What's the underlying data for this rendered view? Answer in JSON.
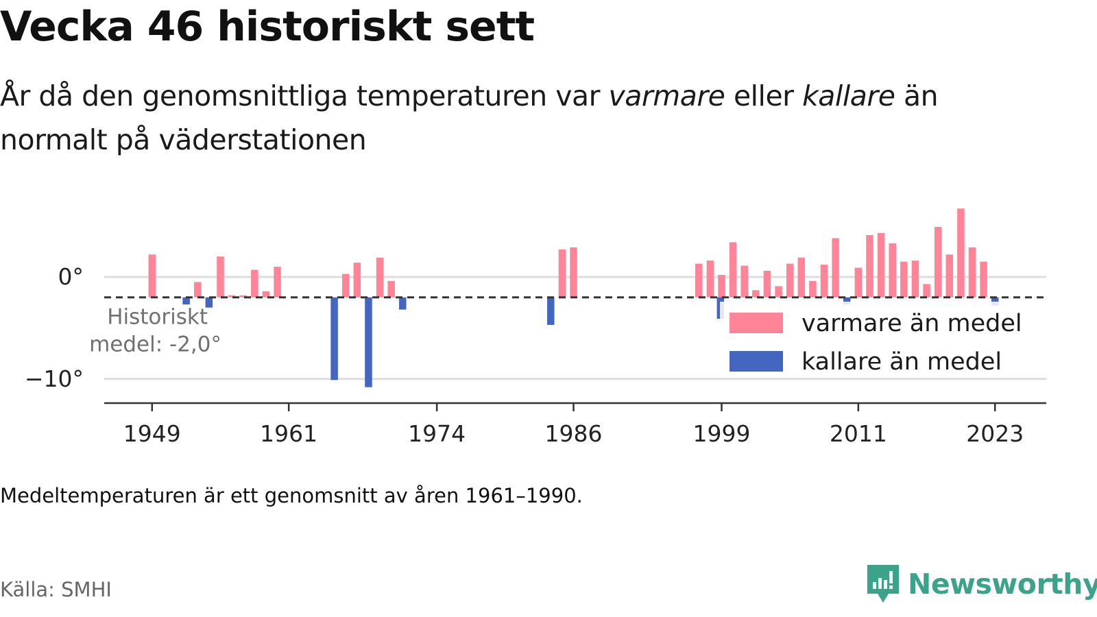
{
  "header": {
    "title": "Vecka 46 historiskt sett",
    "subtitle_pre": "År då den genomsnittliga temperaturen var ",
    "subtitle_warm": "varmare",
    "subtitle_mid": " eller ",
    "subtitle_cold": "kallare",
    "subtitle_post": " än normalt på väderstationen"
  },
  "footer": {
    "note": "Medeltemperaturen är ett genomsnitt av åren 1961–1990.",
    "source": "Källa: SMHI",
    "brand": "Newsworthy"
  },
  "colors": {
    "warm": "#ff8497",
    "cold": "#4466c1",
    "grid": "#dddddd",
    "axis": "#333333",
    "brand": "#3aa38a"
  },
  "chart_data": {
    "type": "bar",
    "baseline": -2.0,
    "baseline_label_line1": "Historiskt",
    "baseline_label_line2": "medel: -2,0°",
    "ylim": [
      -12.5,
      9
    ],
    "yticks": [
      0,
      -10
    ],
    "ytick_labels": [
      "0°",
      "−10°"
    ],
    "xlim": [
      1944.8,
      2027.5
    ],
    "xticks": [
      1949,
      1961,
      1974,
      1986,
      1999,
      2011,
      2023
    ],
    "legend": {
      "position": "right",
      "warm_label": "varmare än medel",
      "cold_label": "kallare än medel"
    },
    "series": [
      {
        "name": "varmare än medel",
        "color": "#ff8497",
        "points": [
          {
            "x": 1949,
            "y": 2.2
          },
          {
            "x": 1953,
            "y": -0.5
          },
          {
            "x": 1955,
            "y": 2.0
          },
          {
            "x": 1956,
            "y": -1.8
          },
          {
            "x": 1957,
            "y": -1.8
          },
          {
            "x": 1958,
            "y": 0.7
          },
          {
            "x": 1959,
            "y": -1.4
          },
          {
            "x": 1960,
            "y": 1.0
          },
          {
            "x": 1966,
            "y": 0.3
          },
          {
            "x": 1967,
            "y": 1.4
          },
          {
            "x": 1969,
            "y": 1.9
          },
          {
            "x": 1970,
            "y": -0.4
          },
          {
            "x": 1985,
            "y": 2.7
          },
          {
            "x": 1986,
            "y": 2.9
          },
          {
            "x": 1997,
            "y": 1.3
          },
          {
            "x": 1998,
            "y": 1.6
          },
          {
            "x": 1999,
            "y": 0.2
          },
          {
            "x": 2000,
            "y": 3.4
          },
          {
            "x": 2001,
            "y": 1.1
          },
          {
            "x": 2002,
            "y": -1.3
          },
          {
            "x": 2003,
            "y": 0.6
          },
          {
            "x": 2004,
            "y": -0.9
          },
          {
            "x": 2005,
            "y": 1.3
          },
          {
            "x": 2006,
            "y": 1.9
          },
          {
            "x": 2007,
            "y": -0.4
          },
          {
            "x": 2008,
            "y": 1.2
          },
          {
            "x": 2009,
            "y": 3.8
          },
          {
            "x": 2011,
            "y": 0.9
          },
          {
            "x": 2012,
            "y": 4.1
          },
          {
            "x": 2013,
            "y": 4.3
          },
          {
            "x": 2014,
            "y": 3.3
          },
          {
            "x": 2015,
            "y": 1.5
          },
          {
            "x": 2016,
            "y": 1.6
          },
          {
            "x": 2017,
            "y": -0.7
          },
          {
            "x": 2018,
            "y": 4.9
          },
          {
            "x": 2019,
            "y": 2.2
          },
          {
            "x": 2020,
            "y": 6.7
          },
          {
            "x": 2021,
            "y": 2.9
          },
          {
            "x": 2022,
            "y": 1.5
          }
        ]
      },
      {
        "name": "kallare än medel",
        "color": "#4466c1",
        "points": [
          {
            "x": 1952,
            "y": -2.7
          },
          {
            "x": 1954,
            "y": -3.0
          },
          {
            "x": 1965,
            "y": -10.1
          },
          {
            "x": 1968,
            "y": -10.8
          },
          {
            "x": 1971,
            "y": -3.2
          },
          {
            "x": 1984,
            "y": -4.7
          },
          {
            "x": 1998.9,
            "y": -4.1
          },
          {
            "x": 2010,
            "y": -2.7
          },
          {
            "x": 2023,
            "y": -2.8
          }
        ]
      }
    ]
  }
}
